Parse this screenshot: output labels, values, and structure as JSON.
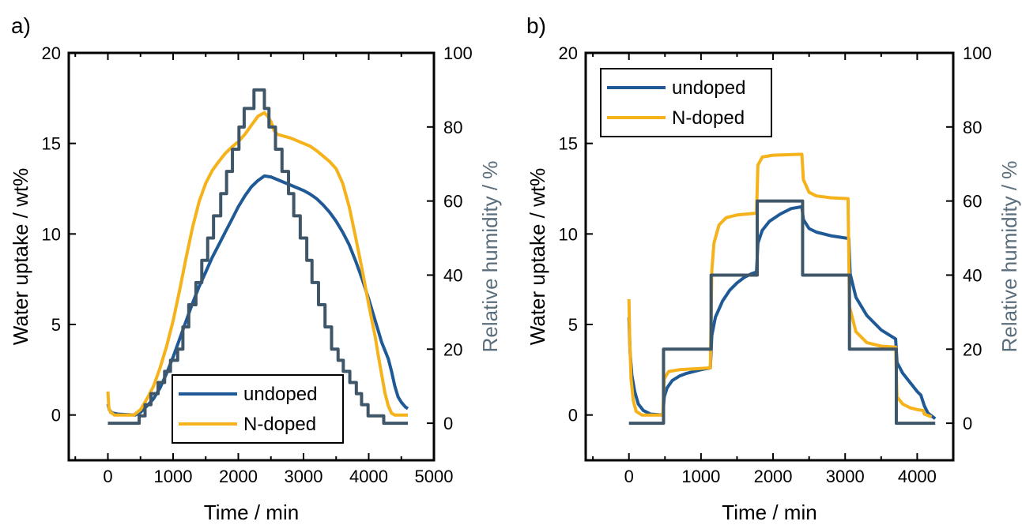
{
  "colors": {
    "undoped": "#1f5a96",
    "n_doped": "#f5b21b",
    "humidity": "#3f5668",
    "axis": "#000000",
    "right_axis_text": "#5b6e7c"
  },
  "chart_data": [
    {
      "panel_label": "a)",
      "type": "line",
      "xlabel": "Time / min",
      "ylabel": "Water uptake / wt%",
      "y2label": "Relative humidity / %",
      "xlim": [
        -600,
        5000
      ],
      "ylim": [
        -2.5,
        20
      ],
      "y2lim": [
        -10,
        100
      ],
      "xticks": [
        "0",
        "1000",
        "2000",
        "3000",
        "4000",
        "5000"
      ],
      "yticks": [
        "0",
        "5",
        "10",
        "15",
        "20"
      ],
      "y2ticks": [
        "0",
        "20",
        "40",
        "60",
        "80",
        "100"
      ],
      "grid": false,
      "legend": {
        "position": "bottom-right",
        "entries": [
          "undoped",
          "N-doped"
        ]
      },
      "series": [
        {
          "name": "undoped",
          "axis": "left",
          "color_key": "undoped",
          "points": [
            [
              0,
              0.6
            ],
            [
              20,
              0.3
            ],
            [
              60,
              0.12
            ],
            [
              150,
              0.05
            ],
            [
              300,
              0.02
            ],
            [
              420,
              0.0
            ],
            [
              500,
              0.15
            ],
            [
              600,
              0.5
            ],
            [
              700,
              0.9
            ],
            [
              800,
              1.5
            ],
            [
              900,
              2.3
            ],
            [
              1000,
              3.2
            ],
            [
              1100,
              4.2
            ],
            [
              1200,
              5.2
            ],
            [
              1300,
              6.2
            ],
            [
              1400,
              7.1
            ],
            [
              1500,
              7.9
            ],
            [
              1600,
              8.7
            ],
            [
              1700,
              9.4
            ],
            [
              1800,
              10.1
            ],
            [
              1900,
              10.8
            ],
            [
              2000,
              11.5
            ],
            [
              2100,
              12.1
            ],
            [
              2200,
              12.6
            ],
            [
              2300,
              12.95
            ],
            [
              2400,
              13.2
            ],
            [
              2500,
              13.15
            ],
            [
              2600,
              13.0
            ],
            [
              2700,
              12.85
            ],
            [
              2800,
              12.7
            ],
            [
              2900,
              12.55
            ],
            [
              3000,
              12.4
            ],
            [
              3100,
              12.2
            ],
            [
              3200,
              11.95
            ],
            [
              3300,
              11.6
            ],
            [
              3400,
              11.2
            ],
            [
              3500,
              10.7
            ],
            [
              3600,
              10.1
            ],
            [
              3700,
              9.4
            ],
            [
              3800,
              8.5
            ],
            [
              3900,
              7.5
            ],
            [
              4000,
              6.4
            ],
            [
              4100,
              5.2
            ],
            [
              4200,
              4.0
            ],
            [
              4300,
              3.1
            ],
            [
              4350,
              2.4
            ],
            [
              4400,
              1.6
            ],
            [
              4450,
              1.0
            ],
            [
              4500,
              0.7
            ],
            [
              4560,
              0.45
            ],
            [
              4600,
              0.35
            ]
          ]
        },
        {
          "name": "N-doped",
          "axis": "left",
          "color_key": "n_doped",
          "points": [
            [
              0,
              1.3
            ],
            [
              15,
              0.4
            ],
            [
              40,
              0.15
            ],
            [
              100,
              0.0
            ],
            [
              300,
              0.0
            ],
            [
              400,
              0.0
            ],
            [
              500,
              0.3
            ],
            [
              600,
              0.9
            ],
            [
              700,
              1.6
            ],
            [
              800,
              2.6
            ],
            [
              900,
              3.8
            ],
            [
              1000,
              5.2
            ],
            [
              1100,
              6.9
            ],
            [
              1200,
              8.7
            ],
            [
              1300,
              10.4
            ],
            [
              1400,
              11.8
            ],
            [
              1500,
              12.8
            ],
            [
              1600,
              13.5
            ],
            [
              1700,
              14.0
            ],
            [
              1800,
              14.45
            ],
            [
              1900,
              14.8
            ],
            [
              2000,
              15.1
            ],
            [
              2100,
              15.5
            ],
            [
              2200,
              16.0
            ],
            [
              2300,
              16.5
            ],
            [
              2400,
              16.7
            ],
            [
              2450,
              16.5
            ],
            [
              2500,
              16.2
            ],
            [
              2550,
              15.7
            ],
            [
              2600,
              15.5
            ],
            [
              2700,
              15.4
            ],
            [
              2800,
              15.3
            ],
            [
              2900,
              15.15
            ],
            [
              3000,
              15.0
            ],
            [
              3100,
              14.85
            ],
            [
              3200,
              14.6
            ],
            [
              3300,
              14.3
            ],
            [
              3400,
              14.0
            ],
            [
              3500,
              13.6
            ],
            [
              3600,
              12.8
            ],
            [
              3700,
              11.5
            ],
            [
              3800,
              9.8
            ],
            [
              3900,
              8.0
            ],
            [
              4000,
              6.1
            ],
            [
              4100,
              4.3
            ],
            [
              4150,
              3.2
            ],
            [
              4200,
              2.2
            ],
            [
              4250,
              1.2
            ],
            [
              4300,
              0.5
            ],
            [
              4350,
              0.1
            ],
            [
              4400,
              0.0
            ],
            [
              4600,
              0.0
            ]
          ]
        },
        {
          "name": "Relative humidity",
          "axis": "right",
          "color_key": "humidity",
          "step": true,
          "levels": [
            [
              0,
              0
            ],
            [
              480,
              2
            ],
            [
              570,
              5
            ],
            [
              660,
              8
            ],
            [
              770,
              11
            ],
            [
              870,
              14
            ],
            [
              960,
              17
            ],
            [
              1070,
              20
            ],
            [
              1150,
              26
            ],
            [
              1240,
              32
            ],
            [
              1350,
              38
            ],
            [
              1440,
              44
            ],
            [
              1530,
              50
            ],
            [
              1620,
              56
            ],
            [
              1730,
              62
            ],
            [
              1820,
              68
            ],
            [
              1910,
              74
            ],
            [
              2010,
              80
            ],
            [
              2090,
              85
            ],
            [
              2240,
              90
            ],
            [
              2400,
              85
            ],
            [
              2470,
              80
            ],
            [
              2570,
              74
            ],
            [
              2670,
              68
            ],
            [
              2770,
              62
            ],
            [
              2850,
              56
            ],
            [
              2950,
              50
            ],
            [
              3050,
              44
            ],
            [
              3130,
              38
            ],
            [
              3230,
              32
            ],
            [
              3330,
              26
            ],
            [
              3430,
              20
            ],
            [
              3530,
              17
            ],
            [
              3610,
              14
            ],
            [
              3710,
              11
            ],
            [
              3810,
              8
            ],
            [
              3890,
              5
            ],
            [
              3990,
              2
            ],
            [
              4230,
              0
            ]
          ],
          "end": 4600
        }
      ]
    },
    {
      "panel_label": "b)",
      "type": "line",
      "xlabel": "Time / min",
      "ylabel": "Water uptake / wt%",
      "y2label": "Relative humidity / %",
      "xlim": [
        -600,
        4500
      ],
      "ylim": [
        -2.5,
        20
      ],
      "y2lim": [
        -10,
        100
      ],
      "xticks": [
        "0",
        "1000",
        "2000",
        "3000",
        "4000"
      ],
      "yticks": [
        "0",
        "5",
        "10",
        "15",
        "20"
      ],
      "y2ticks": [
        "0",
        "20",
        "40",
        "60",
        "80",
        "100"
      ],
      "grid": false,
      "legend": {
        "position": "top-left",
        "entries": [
          "undoped",
          "N-doped"
        ]
      },
      "series": [
        {
          "name": "undoped",
          "axis": "left",
          "color_key": "undoped",
          "points": [
            [
              0,
              5.4
            ],
            [
              15,
              3.5
            ],
            [
              40,
              2.2
            ],
            [
              80,
              1.3
            ],
            [
              130,
              0.6
            ],
            [
              200,
              0.25
            ],
            [
              300,
              0.05
            ],
            [
              470,
              0.0
            ],
            [
              490,
              1.0
            ],
            [
              530,
              1.5
            ],
            [
              600,
              1.9
            ],
            [
              700,
              2.15
            ],
            [
              800,
              2.3
            ],
            [
              900,
              2.4
            ],
            [
              1000,
              2.5
            ],
            [
              1130,
              2.6
            ],
            [
              1150,
              4.4
            ],
            [
              1200,
              5.4
            ],
            [
              1300,
              6.3
            ],
            [
              1400,
              6.9
            ],
            [
              1500,
              7.3
            ],
            [
              1600,
              7.6
            ],
            [
              1700,
              7.8
            ],
            [
              1770,
              7.9
            ],
            [
              1790,
              9.5
            ],
            [
              1850,
              10.2
            ],
            [
              1950,
              10.7
            ],
            [
              2100,
              11.1
            ],
            [
              2250,
              11.4
            ],
            [
              2400,
              11.5
            ],
            [
              2420,
              10.8
            ],
            [
              2500,
              10.3
            ],
            [
              2600,
              10.1
            ],
            [
              2800,
              9.9
            ],
            [
              3050,
              9.75
            ],
            [
              3070,
              7.8
            ],
            [
              3150,
              6.5
            ],
            [
              3300,
              5.5
            ],
            [
              3500,
              4.7
            ],
            [
              3700,
              4.2
            ],
            [
              3720,
              2.9
            ],
            [
              3800,
              2.3
            ],
            [
              3900,
              1.8
            ],
            [
              4000,
              1.3
            ],
            [
              4050,
              1.1
            ],
            [
              4100,
              0.5
            ],
            [
              4150,
              0.1
            ],
            [
              4250,
              -0.2
            ]
          ]
        },
        {
          "name": "N-doped",
          "axis": "left",
          "color_key": "n_doped",
          "points": [
            [
              0,
              6.4
            ],
            [
              12,
              4.0
            ],
            [
              30,
              2.0
            ],
            [
              60,
              0.8
            ],
            [
              100,
              0.2
            ],
            [
              180,
              0.0
            ],
            [
              470,
              0.0
            ],
            [
              490,
              2.0
            ],
            [
              550,
              2.4
            ],
            [
              700,
              2.5
            ],
            [
              900,
              2.55
            ],
            [
              1130,
              2.6
            ],
            [
              1150,
              8.0
            ],
            [
              1180,
              9.5
            ],
            [
              1250,
              10.5
            ],
            [
              1350,
              10.9
            ],
            [
              1500,
              11.05
            ],
            [
              1770,
              11.15
            ],
            [
              1790,
              13.8
            ],
            [
              1850,
              14.25
            ],
            [
              2000,
              14.35
            ],
            [
              2400,
              14.4
            ],
            [
              2420,
              13.0
            ],
            [
              2500,
              12.3
            ],
            [
              2600,
              12.1
            ],
            [
              2800,
              12.0
            ],
            [
              3040,
              11.95
            ],
            [
              3060,
              6.0
            ],
            [
              3150,
              4.6
            ],
            [
              3300,
              4.0
            ],
            [
              3500,
              3.8
            ],
            [
              3700,
              3.75
            ],
            [
              3720,
              1.0
            ],
            [
              3800,
              0.6
            ],
            [
              3900,
              0.4
            ],
            [
              4000,
              0.3
            ],
            [
              4080,
              0.25
            ],
            [
              4100,
              0.05
            ],
            [
              4200,
              -0.1
            ]
          ]
        },
        {
          "name": "Relative humidity",
          "axis": "right",
          "color_key": "humidity",
          "step": true,
          "levels": [
            [
              0,
              0
            ],
            [
              480,
              20
            ],
            [
              1140,
              40
            ],
            [
              1780,
              60
            ],
            [
              2410,
              40
            ],
            [
              3060,
              20
            ],
            [
              3710,
              0
            ]
          ],
          "end": 4250
        }
      ]
    }
  ]
}
